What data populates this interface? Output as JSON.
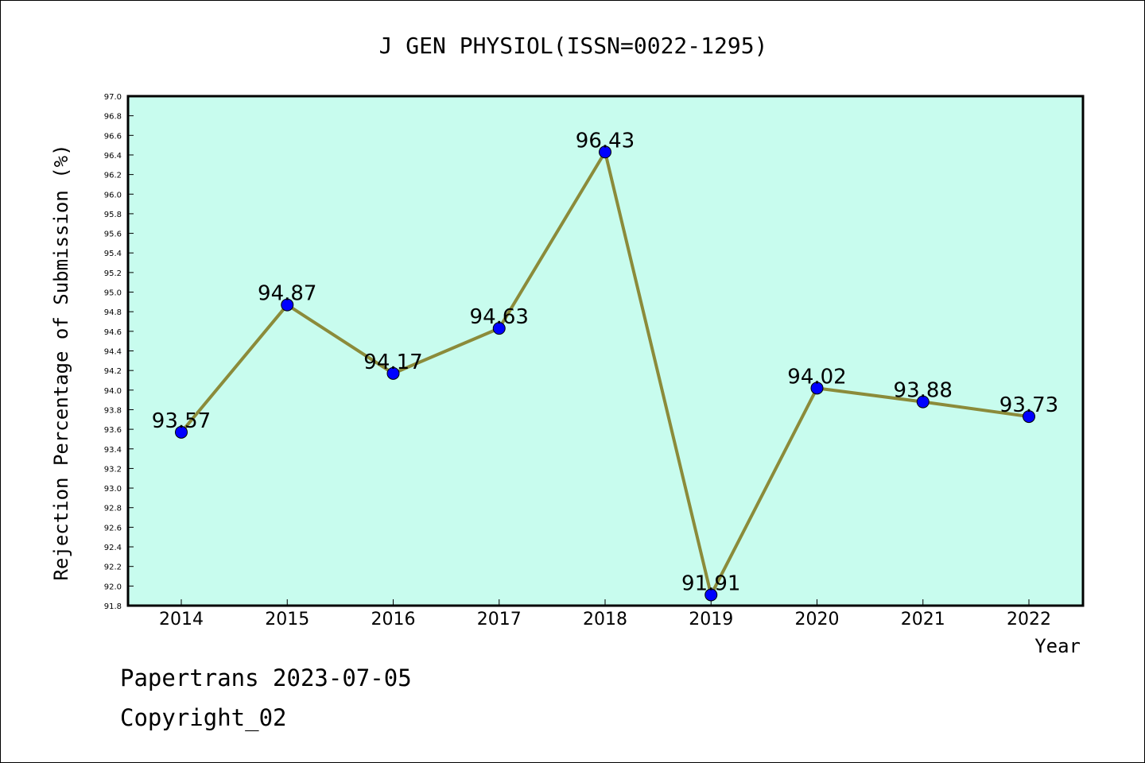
{
  "chart_data": {
    "type": "line",
    "title": "J GEN PHYSIOL(ISSN=0022-1295)",
    "xlabel": "Year",
    "ylabel": "Rejection Percentage of Submission (%)",
    "categories": [
      "2014",
      "2015",
      "2016",
      "2017",
      "2018",
      "2019",
      "2020",
      "2021",
      "2022"
    ],
    "series": [
      {
        "values": [
          93.57,
          94.87,
          94.17,
          94.63,
          96.43,
          91.91,
          94.02,
          93.88,
          93.73
        ],
        "labels": [
          "93.57",
          "94.87",
          "94.17",
          "94.63",
          "96.43",
          "91.91",
          "94.02",
          "93.88",
          "93.73"
        ],
        "line_color": "#8b8b3a",
        "marker_color": "#0000ff"
      }
    ],
    "ylim": [
      91.8,
      97.0
    ],
    "yticks": [
      "91.8",
      "92.0",
      "92.2",
      "92.4",
      "92.6",
      "92.8",
      "93.0",
      "93.2",
      "93.4",
      "93.6",
      "93.8",
      "94.0",
      "94.2",
      "94.4",
      "94.6",
      "94.8",
      "95.0",
      "95.2",
      "95.4",
      "95.6",
      "95.8",
      "96.0",
      "96.2",
      "96.4",
      "96.6",
      "96.8",
      "97.0"
    ],
    "plot_background": "#c8fcee",
    "grid": false,
    "legend": "none"
  },
  "footer": {
    "line1": "Papertrans 2023-07-05",
    "line2": "Copyright_02"
  }
}
